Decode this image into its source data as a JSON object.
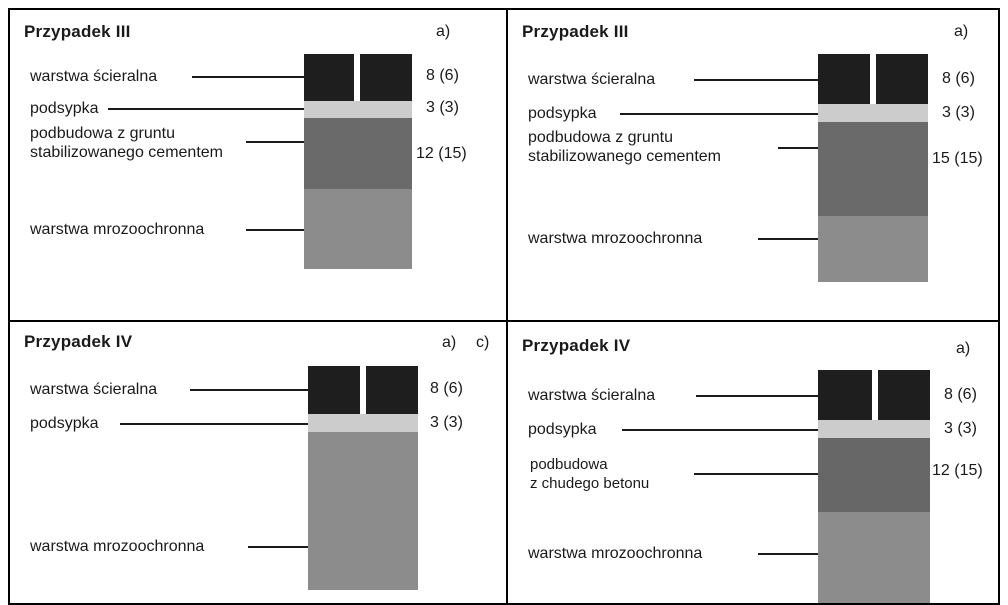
{
  "colors": {
    "wearing_course": "#1e1e1e",
    "bedding": "#cccccc",
    "base_cement": "#6a6a6a",
    "base_concrete": "#676767",
    "frost_layer": "#8c8c8c",
    "border": "#000000"
  },
  "panels": {
    "top_left": {
      "title": "Przypadek III",
      "tag_a": "a)",
      "labels": {
        "wearing": "warstwa ścieralna",
        "bedding": "podsypka",
        "base_line1": "podbudowa z gruntu",
        "base_line2": "stabilizowanego cementem",
        "frost": "warstwa mrozoochronna"
      },
      "values": {
        "wearing": "8 (6)",
        "bedding": "3 (3)",
        "base": "12 (15)"
      }
    },
    "top_right": {
      "title": "Przypadek III",
      "tag_a": "a)",
      "labels": {
        "wearing": "warstwa ścieralna",
        "bedding": "podsypka",
        "base_line1": "podbudowa z gruntu",
        "base_line2": "stabilizowanego cementem",
        "frost": "warstwa mrozoochronna"
      },
      "values": {
        "wearing": "8 (6)",
        "bedding": "3 (3)",
        "base": "15 (15)"
      }
    },
    "bottom_left": {
      "title": "Przypadek IV",
      "tag_a": "a)",
      "tag_c": "c)",
      "labels": {
        "wearing": "warstwa ścieralna",
        "bedding": "podsypka",
        "frost": "warstwa mrozoochronna"
      },
      "values": {
        "wearing": "8 (6)",
        "bedding": "3 (3)"
      }
    },
    "bottom_right": {
      "title": "Przypadek IV",
      "tag_a": "a)",
      "labels": {
        "wearing": "warstwa ścieralna",
        "bedding": "podsypka",
        "base_line1": "podbudowa",
        "base_line2": "z chudego betonu",
        "frost": "warstwa mrozoochronna"
      },
      "values": {
        "wearing": "8 (6)",
        "bedding": "3 (3)",
        "base": "12 (15)"
      }
    }
  }
}
